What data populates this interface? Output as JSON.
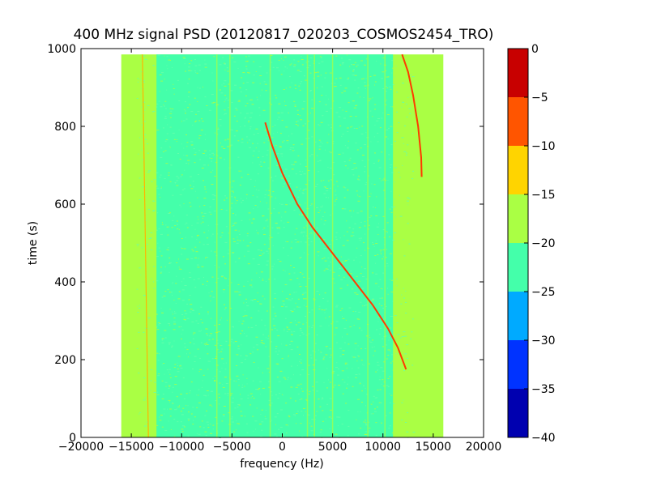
{
  "chart_data": {
    "type": "heatmap",
    "title": "400 MHz signal PSD (20120817_020203_COSMOS2454_TRO)",
    "xlabel": "frequency (Hz)",
    "ylabel": "time (s)",
    "xlim": [
      -20000,
      20000
    ],
    "ylim": [
      0,
      1000
    ],
    "xticks": [
      -20000,
      -15000,
      -10000,
      -5000,
      0,
      5000,
      10000,
      15000,
      20000
    ],
    "xtick_labels": [
      "−20000",
      "−15000",
      "−10000",
      "−5000",
      "0",
      "5000",
      "10000",
      "15000",
      "20000"
    ],
    "yticks": [
      0,
      200,
      400,
      600,
      800,
      1000
    ],
    "ytick_labels": [
      "0",
      "200",
      "400",
      "600",
      "800",
      "1000"
    ],
    "data_extent": {
      "x": [
        -16000,
        16000
      ],
      "y": [
        0,
        985
      ]
    },
    "colorbar": {
      "range": [
        -40,
        0
      ],
      "levels": [
        -40,
        -35,
        -30,
        -25,
        -20,
        -15,
        -10,
        -5,
        0
      ],
      "tick_labels": [
        "−40",
        "−35",
        "−30",
        "−25",
        "−20",
        "−15",
        "−10",
        "−5",
        "0"
      ],
      "colors": [
        "#0000b0",
        "#0033ff",
        "#00aaff",
        "#44ffaa",
        "#aaff44",
        "#ffd400",
        "#ff5500",
        "#c80000"
      ]
    },
    "series": [
      {
        "x": [
          -1700,
          -1000,
          0,
          1500,
          3000,
          4500,
          6000,
          7500,
          9000,
          10500,
          11500,
          12300
        ],
        "y": [
          810,
          750,
          680,
          600,
          540,
          490,
          440,
          390,
          340,
          280,
          230,
          175
        ]
      },
      {
        "x": [
          11900,
          12500,
          13000,
          13500,
          13800,
          13850
        ],
        "y": [
          985,
          940,
          880,
          800,
          720,
          670
        ]
      },
      {
        "x": [
          -13900,
          -13600,
          -13300
        ],
        "y": [
          985,
          500,
          0
        ]
      }
    ]
  }
}
